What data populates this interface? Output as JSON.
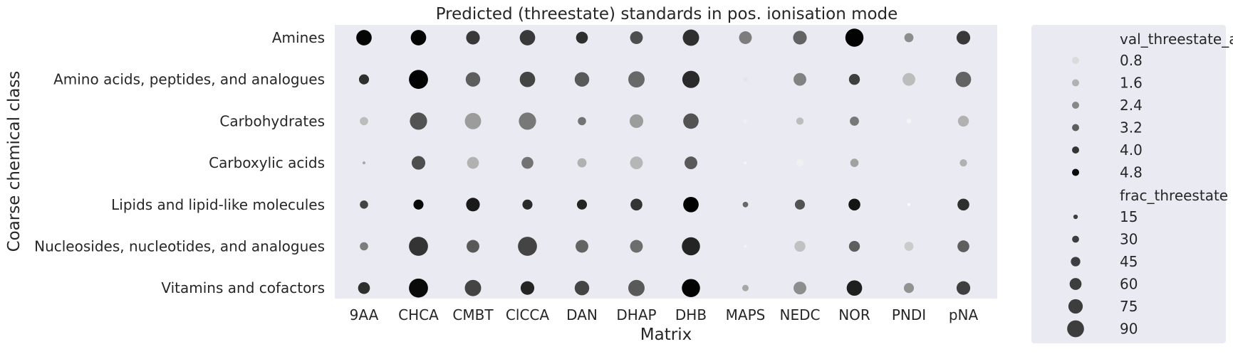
{
  "chart_data": {
    "type": "scatter",
    "title": "Predicted (threestate) standards in pos. ionisation mode",
    "xlabel": "Matrix",
    "ylabel": "Coarse chemical class",
    "x_categories": [
      "9AA",
      "CHCA",
      "CMBT",
      "ClCCA",
      "DAN",
      "DHAP",
      "DHB",
      "MAPS",
      "NEDC",
      "NOR",
      "PNDI",
      "pNA"
    ],
    "y_categories": [
      "Amines",
      "Amino acids, peptides, and analogues",
      "Carbohydrates",
      "Carboxylic acids",
      "Lipids and lipid-like molecules",
      "Nucleosides, nucleotides, and analogues",
      "Vitamins and cofactors"
    ],
    "background_color": "#eaeaf2",
    "grid": false,
    "legend_position": "outside right",
    "hue_variable": "val_threestate_avg",
    "size_variable": "frac_threestate",
    "hue_range": [
      0.2,
      5.0
    ],
    "size_range": [
      5,
      100
    ],
    "legend": {
      "hue_title": "val_threestate_avg",
      "hue_ticks": [
        "0.8",
        "1.6",
        "2.4",
        "3.2",
        "4.0",
        "4.8"
      ],
      "size_title": "frac_threestate",
      "size_ticks": [
        "15",
        "30",
        "45",
        "60",
        "75",
        "90"
      ]
    },
    "values": {
      "val_threestate_avg": [
        [
          4.9,
          4.95,
          3.9,
          3.9,
          4.1,
          3.5,
          4.1,
          2.6,
          3.1,
          4.95,
          2.3,
          3.9
        ],
        [
          4.1,
          4.95,
          3.2,
          3.7,
          3.3,
          3.0,
          4.2,
          0.6,
          2.5,
          3.8,
          1.4,
          3.1
        ],
        [
          1.4,
          3.4,
          2.0,
          2.7,
          2.8,
          2.0,
          3.4,
          0.4,
          1.4,
          2.7,
          0.3,
          1.6
        ],
        [
          1.8,
          3.5,
          1.6,
          2.8,
          1.6,
          1.5,
          3.3,
          0.3,
          0.4,
          1.9,
          0.5,
          1.6
        ],
        [
          3.7,
          4.8,
          4.5,
          4.2,
          4.3,
          4.0,
          5.0,
          3.0,
          3.4,
          4.6,
          0.2,
          4.1
        ],
        [
          2.6,
          4.0,
          3.3,
          3.7,
          3.1,
          2.9,
          4.3,
          0.3,
          1.3,
          3.2,
          1.1,
          3.2
        ],
        [
          4.1,
          4.8,
          3.7,
          4.3,
          3.7,
          3.3,
          4.95,
          1.8,
          2.3,
          4.4,
          2.2,
          3.8
        ]
      ],
      "frac_threestate": [
        [
          75,
          75,
          65,
          75,
          55,
          60,
          80,
          60,
          65,
          90,
          40,
          65
        ],
        [
          45,
          95,
          70,
          75,
          70,
          80,
          85,
          12,
          60,
          50,
          60,
          75
        ],
        [
          35,
          85,
          80,
          85,
          35,
          65,
          75,
          12,
          30,
          40,
          15,
          50
        ],
        [
          5,
          65,
          55,
          55,
          40,
          60,
          60,
          4,
          30,
          35,
          10,
          30
        ],
        [
          35,
          45,
          65,
          45,
          45,
          55,
          75,
          20,
          45,
          55,
          3,
          55
        ],
        [
          35,
          95,
          60,
          95,
          60,
          60,
          90,
          5,
          50,
          50,
          40,
          55
        ],
        [
          55,
          95,
          80,
          65,
          70,
          80,
          90,
          25,
          60,
          75,
          45,
          65
        ]
      ]
    }
  }
}
